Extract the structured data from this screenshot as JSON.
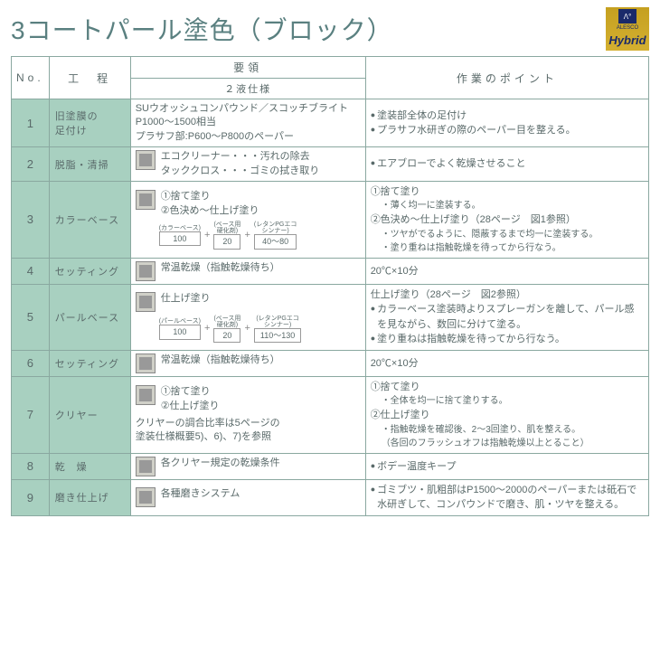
{
  "title": "3コートパール塗色（ブロック）",
  "logo": {
    "top": "Λ°",
    "brand": "ALESCO",
    "text": "Hybrid"
  },
  "headers": {
    "no": "No.",
    "process": "工　程",
    "method_top": "要領",
    "method_sub": "２液仕様",
    "point": "作業のポイント"
  },
  "rows": [
    {
      "no": "1",
      "proc": "旧塗膜の\n足付け",
      "method": "SUウオッシュコンパウンド／スコッチブライトP1000～1500相当\nプラサフ部:P600～P800のペーパー",
      "points": [
        "塗装部全体の足付け",
        "プラサフ水研ぎの際のペーパー目を整える。"
      ]
    },
    {
      "no": "2",
      "proc": "脱脂・清掃",
      "method_lines": [
        "エコクリーナー・・・汚れの除去",
        "タッククロス・・・ゴミの拭き取り"
      ],
      "points": [
        "エアブローでよく乾燥させること"
      ]
    },
    {
      "no": "3",
      "proc": "カラーベース",
      "method_steps": [
        "①捨て塗り",
        "②色決め～仕上げ塗り"
      ],
      "ratio": {
        "labels": [
          "(カラーベース)",
          "(ベース用\n硬化剤)",
          "(レタンPGエコ\nシンナー)"
        ],
        "values": [
          "100",
          "20",
          "40～80"
        ]
      },
      "point_steps": [
        "①捨て塗り",
        "・薄く均一に塗装する。",
        "②色決め～仕上げ塗り（28ページ　図1参照）",
        "・ツヤがでるように、隠蔽するまで均一に塗装する。",
        "・塗り重ねは指触乾燥を待ってから行なう。"
      ]
    },
    {
      "no": "4",
      "proc": "セッティング",
      "method_text": "常温乾燥（指触乾燥待ち）",
      "point_text": "20℃×10分"
    },
    {
      "no": "5",
      "proc": "パールベース",
      "method_title": "仕上げ塗り",
      "ratio": {
        "labels": [
          "(パールベース)",
          "(ベース用\n硬化剤)",
          "(レタンPGエコ\nシンナー)"
        ],
        "values": [
          "100",
          "20",
          "110～130"
        ]
      },
      "point_title": "仕上げ塗り（28ページ　図2参照）",
      "points": [
        "カラーベース塗装時よりスプレーガンを離して、パール感を見ながら、数回に分けて塗る。",
        "塗り重ねは指触乾燥を待ってから行なう。"
      ]
    },
    {
      "no": "6",
      "proc": "セッティング",
      "method_text": "常温乾燥（指触乾燥待ち）",
      "point_text": "20℃×10分"
    },
    {
      "no": "7",
      "proc": "クリヤー",
      "method_steps": [
        "①捨て塗り",
        "②仕上げ塗り"
      ],
      "method_note": "クリヤーの調合比率は5ページの\n塗装仕様概要5)、6)、7)を参照",
      "point_steps": [
        "①捨て塗り",
        "・全体を均一に捨て塗りする。",
        "②仕上げ塗り",
        "・指触乾燥を確認後、2～3回塗り、肌を整える。",
        "（各回のフラッシュオフは指触乾燥以上とること）"
      ]
    },
    {
      "no": "8",
      "proc": "乾　燥",
      "method_text": "各クリヤー規定の乾燥条件",
      "points": [
        "ボデー温度キープ"
      ]
    },
    {
      "no": "9",
      "proc": "磨き仕上げ",
      "method_text": "各種磨きシステム",
      "points": [
        "ゴミブツ・肌粗部はP1500～2000のペーパーまたは砥石で水研ぎして、コンパウンドで磨き、肌・ツヤを整える。"
      ]
    }
  ]
}
